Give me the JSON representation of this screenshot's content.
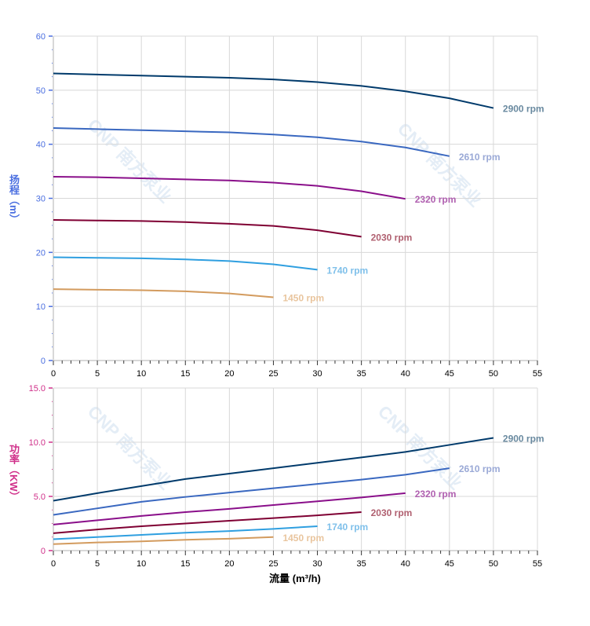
{
  "watermark": "CNP 南方泵业",
  "chart_data": [
    {
      "type": "line",
      "ylabel": "扬程（m）",
      "xlim": [
        0,
        55
      ],
      "ylim": [
        0,
        60
      ],
      "xticks": [
        0,
        5,
        10,
        15,
        20,
        25,
        30,
        35,
        40,
        45,
        50,
        55
      ],
      "yticks": [
        0,
        10,
        20,
        30,
        40,
        50,
        60
      ],
      "ytick_labels": [
        "0",
        "10",
        "20",
        "30",
        "40",
        "50",
        "60"
      ],
      "grid": true,
      "axis_color": "#4a6ee0",
      "series": [
        {
          "name": "2900 rpm",
          "color": "#003a6b",
          "label_color": "#6a8aa0",
          "x": [
            0,
            5,
            10,
            15,
            20,
            25,
            30,
            35,
            40,
            45,
            50
          ],
          "y": [
            53.1,
            52.9,
            52.7,
            52.5,
            52.3,
            52.0,
            51.5,
            50.8,
            49.8,
            48.5,
            46.7
          ]
        },
        {
          "name": "2610 rpm",
          "color": "#3a68c0",
          "label_color": "#9aa9d6",
          "x": [
            0,
            5,
            10,
            15,
            20,
            25,
            30,
            35,
            40,
            45
          ],
          "y": [
            43.0,
            42.8,
            42.6,
            42.4,
            42.2,
            41.8,
            41.3,
            40.5,
            39.4,
            37.8
          ]
        },
        {
          "name": "2320 rpm",
          "color": "#8a0f8a",
          "label_color": "#b060b0",
          "x": [
            0,
            5,
            10,
            15,
            20,
            25,
            30,
            35,
            40
          ],
          "y": [
            34.0,
            33.9,
            33.7,
            33.5,
            33.3,
            32.9,
            32.3,
            31.3,
            29.9
          ]
        },
        {
          "name": "2030 rpm",
          "color": "#7f0033",
          "label_color": "#b06070",
          "x": [
            0,
            5,
            10,
            15,
            20,
            25,
            30,
            35
          ],
          "y": [
            26.0,
            25.9,
            25.8,
            25.6,
            25.3,
            24.9,
            24.1,
            22.9
          ]
        },
        {
          "name": "1740 rpm",
          "color": "#2f9fe0",
          "label_color": "#7fc0ea",
          "x": [
            0,
            5,
            10,
            15,
            20,
            25,
            30
          ],
          "y": [
            19.1,
            19.0,
            18.9,
            18.7,
            18.4,
            17.8,
            16.8
          ]
        },
        {
          "name": "1450 rpm",
          "color": "#d39b5e",
          "label_color": "#e9c59e",
          "x": [
            0,
            5,
            10,
            15,
            20,
            25
          ],
          "y": [
            13.2,
            13.1,
            13.0,
            12.8,
            12.4,
            11.7
          ]
        }
      ]
    },
    {
      "type": "line",
      "ylabel": "功率（KW）",
      "xlabel": "流量 (m³/h)",
      "xlim": [
        0,
        55
      ],
      "ylim": [
        0,
        15
      ],
      "xticks": [
        0,
        5,
        10,
        15,
        20,
        25,
        30,
        35,
        40,
        45,
        50,
        55
      ],
      "yticks": [
        0,
        5,
        10,
        15
      ],
      "ytick_labels": [
        "0",
        "5.0",
        "10.0",
        "15.0"
      ],
      "grid": true,
      "axis_color": "#d0308a",
      "series": [
        {
          "name": "2900 rpm",
          "color": "#003a6b",
          "label_color": "#6a8aa0",
          "x": [
            0,
            5,
            10,
            15,
            20,
            25,
            30,
            35,
            40,
            45,
            50
          ],
          "y": [
            4.6,
            5.3,
            5.95,
            6.6,
            7.1,
            7.6,
            8.1,
            8.6,
            9.1,
            9.75,
            10.4
          ]
        },
        {
          "name": "2610 rpm",
          "color": "#3a68c0",
          "label_color": "#9aa9d6",
          "x": [
            0,
            5,
            10,
            15,
            20,
            25,
            30,
            35,
            40,
            45
          ],
          "y": [
            3.3,
            3.9,
            4.5,
            4.95,
            5.35,
            5.75,
            6.15,
            6.55,
            7.0,
            7.6
          ]
        },
        {
          "name": "2320 rpm",
          "color": "#8a0f8a",
          "label_color": "#b060b0",
          "x": [
            0,
            5,
            10,
            15,
            20,
            25,
            30,
            35,
            40
          ],
          "y": [
            2.4,
            2.8,
            3.2,
            3.55,
            3.85,
            4.2,
            4.55,
            4.9,
            5.3
          ]
        },
        {
          "name": "2030 rpm",
          "color": "#7f0033",
          "label_color": "#b06070",
          "x": [
            0,
            5,
            10,
            15,
            20,
            25,
            30,
            35
          ],
          "y": [
            1.6,
            1.95,
            2.25,
            2.5,
            2.75,
            3.0,
            3.25,
            3.55
          ]
        },
        {
          "name": "1740 rpm",
          "color": "#2f9fe0",
          "label_color": "#7fc0ea",
          "x": [
            0,
            5,
            10,
            15,
            20,
            25,
            30
          ],
          "y": [
            1.05,
            1.25,
            1.45,
            1.65,
            1.8,
            2.0,
            2.25
          ]
        },
        {
          "name": "1450 rpm",
          "color": "#d39b5e",
          "label_color": "#e9c59e",
          "x": [
            0,
            5,
            10,
            15,
            20,
            25
          ],
          "y": [
            0.6,
            0.75,
            0.85,
            1.0,
            1.1,
            1.25
          ]
        }
      ]
    }
  ]
}
